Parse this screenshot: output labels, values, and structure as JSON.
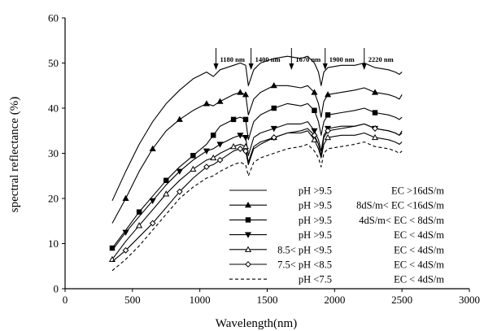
{
  "chart_data": {
    "type": "line",
    "title": "",
    "xlabel": "Wavelength(nm)",
    "ylabel": "spectral reflectance (%)",
    "xlim": [
      0,
      3000
    ],
    "ylim": [
      0,
      60
    ],
    "xticks": [
      0,
      500,
      1000,
      1500,
      2000,
      2500,
      3000
    ],
    "yticks": [
      0,
      10,
      20,
      30,
      40,
      50,
      60
    ],
    "legend_position": "bottom-right",
    "grid": false,
    "annotations": [
      {
        "text": "1180 nm",
        "x": 1120
      },
      {
        "text": "1400 nm",
        "x": 1380
      },
      {
        "text": "1670 nm",
        "x": 1680
      },
      {
        "text": "1900 nm",
        "x": 1930
      },
      {
        "text": "2220 nm",
        "x": 2220
      }
    ],
    "x": [
      350,
      450,
      550,
      650,
      750,
      850,
      950,
      1050,
      1100,
      1150,
      1250,
      1300,
      1340,
      1360,
      1400,
      1450,
      1550,
      1650,
      1750,
      1800,
      1850,
      1880,
      1900,
      1920,
      1950,
      2050,
      2150,
      2220,
      2300,
      2400,
      2450,
      2480,
      2500
    ],
    "series": [
      {
        "legend_left": "pH >9.5",
        "legend_right": "EC >16dS/m",
        "marker": "none",
        "dash": false,
        "values": [
          19.5,
          26,
          32,
          37,
          41,
          44,
          46.5,
          48,
          47,
          48.5,
          49.5,
          50,
          49.5,
          45,
          48.5,
          50,
          51,
          51.5,
          51,
          51.5,
          50,
          48,
          45,
          48,
          49,
          49.5,
          49.5,
          50,
          49,
          48.5,
          48,
          47.5,
          48
        ]
      },
      {
        "legend_left": "pH >9.5",
        "legend_right": "8dS/m< EC <16dS/m",
        "marker": "triangle-up-filled",
        "dash": false,
        "values": [
          14.5,
          20,
          26,
          31,
          35,
          37.5,
          39.5,
          41,
          40.5,
          41.5,
          43,
          43.5,
          43,
          38.5,
          42,
          43.5,
          45,
          45,
          44.5,
          45,
          43.5,
          41,
          38,
          41.5,
          43,
          43.5,
          44,
          44.5,
          43.5,
          43,
          42.5,
          42,
          43
        ]
      },
      {
        "legend_left": "pH >9.5",
        "legend_right": "4dS/m< EC <  8dS/m",
        "marker": "square-filled",
        "dash": false,
        "values": [
          9,
          13,
          17,
          20.5,
          24,
          27,
          29.5,
          32,
          34,
          36,
          37.5,
          38,
          37.5,
          33,
          37,
          38.5,
          40,
          41,
          40.5,
          41,
          39.5,
          37,
          34,
          37,
          38.5,
          39,
          39.5,
          40,
          39,
          38.5,
          38,
          37.5,
          38
        ]
      },
      {
        "legend_left": "pH >9.5",
        "legend_right": "EC <  4dS/m",
        "marker": "triangle-down-filled",
        "dash": false,
        "values": [
          8.5,
          12.5,
          16,
          19.5,
          23,
          26,
          28.5,
          30.5,
          31,
          32,
          33.5,
          34,
          33.5,
          29.5,
          33.5,
          34.5,
          35.5,
          36.5,
          36.5,
          37,
          35,
          33,
          30.5,
          34,
          35.5,
          36,
          36,
          36.5,
          35.5,
          35,
          34.5,
          34,
          34.5
        ]
      },
      {
        "legend_left": "8.5< pH <9.5",
        "legend_right": "EC <  4dS/m",
        "marker": "triangle-up-open",
        "dash": false,
        "values": [
          6.5,
          10.5,
          14,
          17.5,
          21,
          24,
          26.5,
          28.5,
          29,
          30,
          31.5,
          32,
          31.5,
          28,
          31.5,
          32.5,
          33.5,
          34.5,
          34.5,
          35,
          33,
          31,
          29,
          32,
          33.5,
          34,
          34,
          34.5,
          33.5,
          33,
          32.5,
          32,
          32.5
        ]
      },
      {
        "legend_left": "7.5< pH <8.5",
        "legend_right": "EC <  4dS/m",
        "marker": "diamond-open",
        "dash": false,
        "values": [
          6,
          8.5,
          11.5,
          14.5,
          18,
          21.5,
          24.5,
          27,
          27.5,
          28.5,
          30.5,
          31,
          30.5,
          27.5,
          31,
          32,
          33.5,
          34.5,
          35,
          35.5,
          34,
          32,
          29.5,
          33.5,
          35,
          35.5,
          36,
          36.5,
          35.5,
          35,
          34.5,
          34,
          35
        ]
      },
      {
        "legend_left": "pH <7.5",
        "legend_right": "EC <  4dS/m",
        "marker": "none",
        "dash": true,
        "values": [
          4,
          6.5,
          9.5,
          13,
          16.5,
          20,
          22.5,
          24.5,
          25,
          26,
          27.5,
          28,
          27.5,
          25,
          28,
          29,
          30,
          31,
          31.5,
          32,
          30.5,
          29,
          27,
          30,
          31,
          31.5,
          32,
          32.5,
          31.5,
          31,
          30.5,
          30,
          30.5
        ]
      }
    ]
  }
}
